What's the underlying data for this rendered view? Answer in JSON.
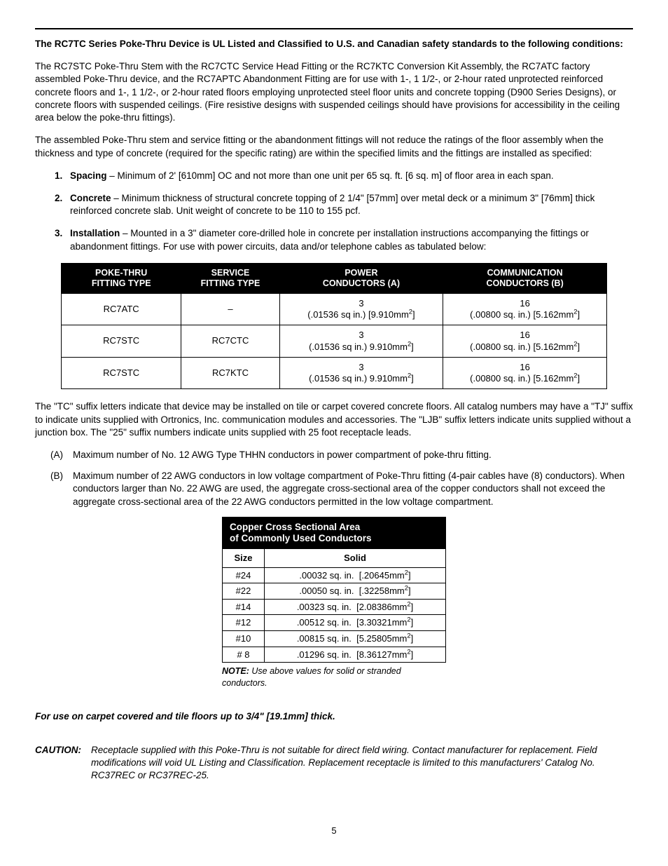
{
  "intro_heading": "The RC7TC Series Poke-Thru Device is UL Listed and Classified to U.S. and Canadian safety standards to the following conditions:",
  "para1": "The RC7STC Poke-Thru Stem with the RC7CTC Service Head Fitting or the RC7KTC Conversion Kit Assembly, the RC7ATC factory assembled Poke-Thru device, and the RC7APTC Abandonment Fitting are for use with 1-, 1 1/2-, or 2-hour rated unprotected reinforced concrete floors and 1-, 1 1/2-, or 2-hour rated floors employing unprotected steel floor units and concrete topping (D900 Series Designs), or concrete floors with suspended ceilings. (Fire resistive designs with suspended ceilings should have provisions for accessibility in the ceiling area below the poke-thru fittings).",
  "para2": "The assembled Poke-Thru stem and service fitting or the abandonment fittings will not reduce the ratings of the floor assembly when the thickness and type of concrete (required for the specific rating) are within the specified limits and the fittings are installed as specified:",
  "items": [
    {
      "num": "1.",
      "lead": "Spacing",
      "text": " – Minimum of 2' [610mm] OC and not more than one unit per 65 sq. ft. [6 sq. m] of floor area in each span."
    },
    {
      "num": "2.",
      "lead": "Concrete",
      "text": " – Minimum thickness of structural concrete topping of 2 1/4\" [57mm] over metal deck or a minimum 3\" [76mm] thick reinforced concrete slab. Unit weight of concrete to be 110 to 155 pcf."
    },
    {
      "num": "3.",
      "lead": "Installation",
      "text": " – Mounted in a 3\" diameter core-drilled hole in concrete per installation instructions accompanying the fittings or abandonment fittings. For use with power circuits, data and/or telephone cables as tabulated below:"
    }
  ],
  "t1": {
    "headers": {
      "c1a": "Poke-Thru",
      "c1b": "Fitting Type",
      "c2a": "Service",
      "c2b": "Fitting Type",
      "c3a": "Power",
      "c3b": "Conductors (A)",
      "c4a": "Communication",
      "c4b": "Conductors (B)"
    },
    "rows": [
      {
        "c1": "RC7ATC",
        "c2": "–",
        "p_top": "3",
        "p_bot_a": "(.01536 sq in.) [9.910mm",
        "p_bot_b": "]",
        "m_top": "16",
        "m_bot_a": "(.00800 sq. in.) [5.162mm",
        "m_bot_b": "]"
      },
      {
        "c1": "RC7STC",
        "c2": "RC7CTC",
        "p_top": "3",
        "p_bot_a": "(.01536 sq in.) 9.910mm",
        "p_bot_b": "]",
        "m_top": "16",
        "m_bot_a": "(.00800 sq. in.) [5.162mm",
        "m_bot_b": "]"
      },
      {
        "c1": "RC7STC",
        "c2": "RC7KTC",
        "p_top": "3",
        "p_bot_a": "(.01536 sq in.) 9.910mm",
        "p_bot_b": "]",
        "m_top": "16",
        "m_bot_a": "(.00800 sq. in.) [5.162mm",
        "m_bot_b": "]"
      }
    ]
  },
  "para3": "The \"TC\" suffix letters indicate that device may be installed on tile or carpet covered concrete floors. All catalog numbers may have a \"TJ\" suffix to indicate units supplied with Ortronics, Inc. communication modules and accessories. The \"LJB\" suffix letters indicate units supplied without a junction box. The \"25\" suffix numbers indicate units supplied with 25 foot receptacle leads.",
  "letterA": {
    "let": "(A)",
    "text": "Maximum number of No. 12 AWG Type THHN conductors in power compartment of poke-thru fitting."
  },
  "letterB": {
    "let": "(B)",
    "text": "Maximum number of 22 AWG conductors in low voltage compartment of Poke-Thru fitting (4-pair cables have (8) conductors). When conductors larger than No. 22 AWG are used, the aggregate cross-sectional area of the copper conductors shall not exceed the aggregate cross-sectional area of the 22 AWG conductors permitted in the low voltage compartment."
  },
  "t2": {
    "title1": "Copper Cross Sectional Area",
    "title2": "of Commonly Used Conductors",
    "h_size": "Size",
    "h_solid": "Solid",
    "rows": [
      {
        "size": "#24",
        "a": ".00032 sq. in.",
        "b": "[.20645mm",
        "c": "]"
      },
      {
        "size": "#22",
        "a": ".00050 sq. in.",
        "b": "[.32258mm",
        "c": "]"
      },
      {
        "size": "#14",
        "a": ".00323 sq. in.",
        "b": "[2.08386mm",
        "c": "]"
      },
      {
        "size": "#12",
        "a": ".00512 sq. in.",
        "b": "[3.30321mm",
        "c": "]"
      },
      {
        "size": "#10",
        "a": ".00815 sq. in.",
        "b": "[5.25805mm",
        "c": "]"
      },
      {
        "size": "#  8",
        "a": ".01296 sq. in.",
        "b": "[8.36127mm",
        "c": "]"
      }
    ]
  },
  "note_lead": "NOTE:",
  "note_text": "  Use above values for solid or stranded conductors.",
  "floor_use": "For use on carpet covered and tile floors up to 3/4\" [19.1mm] thick.",
  "caution_lead": "CAUTION:",
  "caution_text": "Receptacle supplied with this Poke-Thru is not suitable for direct field wiring. Contact manufacturer for replacement. Field modifications will void UL Listing and Classification. Replacement receptacle is limited to this manufacturers' Catalog No. RC37REC or RC37REC-25.",
  "page_number": "5"
}
